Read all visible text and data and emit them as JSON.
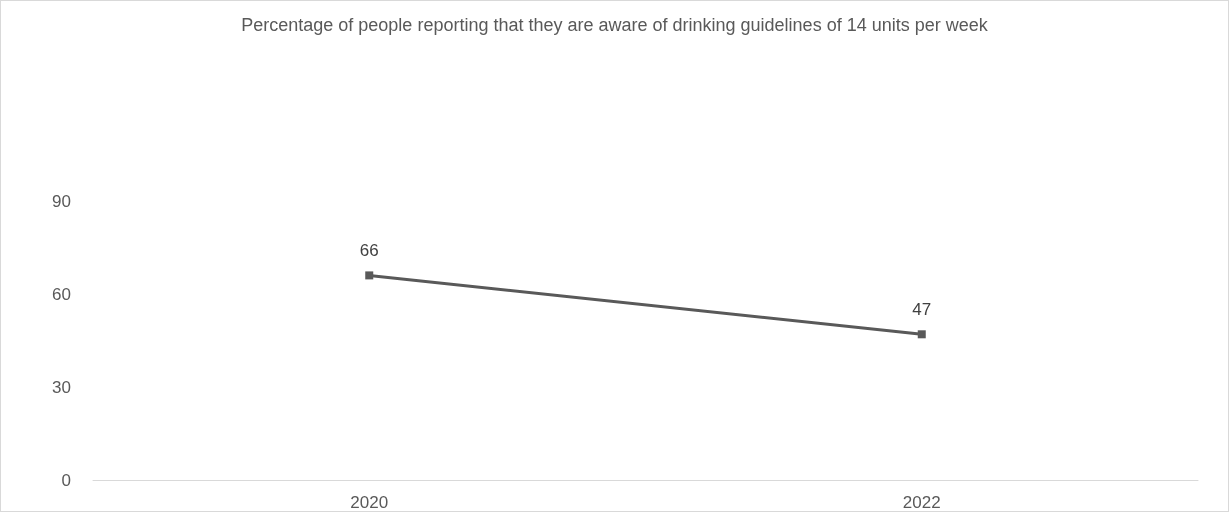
{
  "chart_data": {
    "type": "line",
    "title": "Percentage of people reporting that they are aware of drinking guidelines of 14 units per week",
    "categories": [
      "2020",
      "2022"
    ],
    "series": [
      {
        "color": "#595959",
        "values": [
          66,
          47
        ]
      }
    ],
    "ylim": [
      0,
      90
    ],
    "yticks": [
      0,
      30,
      60,
      90
    ],
    "grid": false,
    "marker": "square",
    "line_style": "solid",
    "data_labels": true
  }
}
